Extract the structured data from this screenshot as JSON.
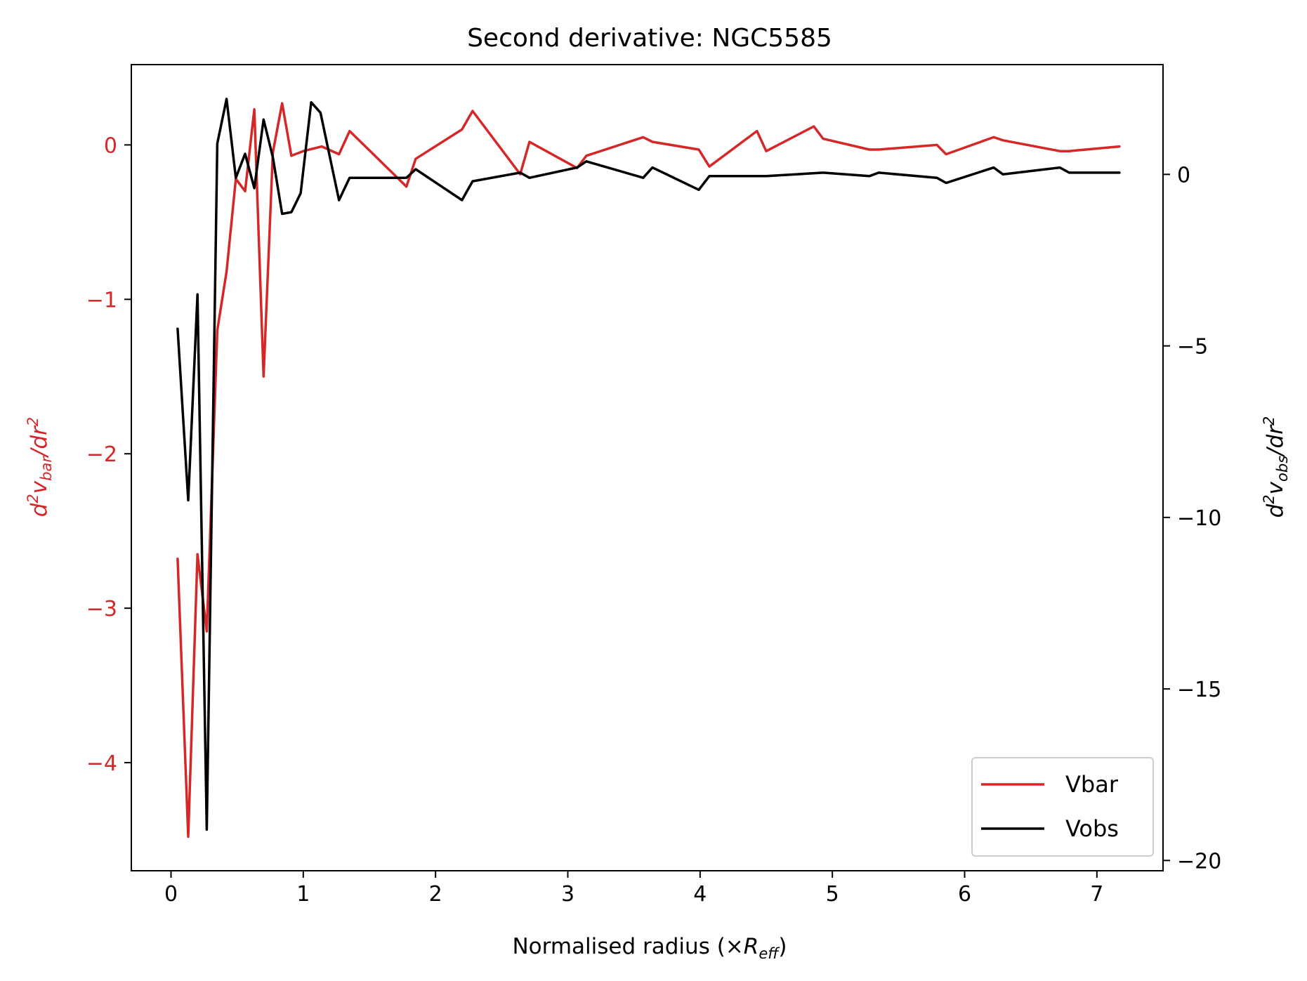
{
  "chart_data": {
    "type": "line",
    "title": "Second derivative: NGC5585",
    "xlabel": {
      "main": "Normalised radius (×",
      "var": "R",
      "sub": "eff",
      "close": ")"
    },
    "ylabel_left": {
      "d": "d",
      "exp": "2",
      "v": "v",
      "sub": "bar",
      "rest": "/dr",
      "exp2": "2"
    },
    "ylabel_right": {
      "d": "d",
      "exp": "2",
      "v": "v",
      "sub": "obs",
      "rest": "/dr",
      "exp2": "2"
    },
    "xlim": [
      -0.3,
      7.5
    ],
    "ylim_left": [
      -4.7,
      0.52
    ],
    "ylim_right": [
      -20.3,
      3.2
    ],
    "xticks": [
      0,
      1,
      2,
      3,
      4,
      5,
      6,
      7
    ],
    "yticks_left": [
      0,
      -1,
      -2,
      -3,
      -4
    ],
    "yticks_left_labels": [
      "0",
      "−1",
      "−2",
      "−3",
      "−4"
    ],
    "yticks_right": [
      0,
      -5,
      -10,
      -15,
      -20
    ],
    "yticks_right_labels": [
      "0",
      "−5",
      "−10",
      "−15",
      "−20"
    ],
    "legend_position": "lower-right",
    "colors": {
      "vbar": "#d62728",
      "vobs": "#000000",
      "left_axis": "#d62728"
    },
    "series": [
      {
        "name": "Vbar",
        "axis": "left",
        "color": "#d62728",
        "x": [
          0.05,
          0.13,
          0.2,
          0.27,
          0.35,
          0.42,
          0.49,
          0.56,
          0.63,
          0.7,
          0.77,
          0.84,
          0.91,
          1.0,
          1.14,
          1.27,
          1.35,
          1.78,
          1.85,
          2.2,
          2.28,
          2.64,
          2.71,
          3.07,
          3.14,
          3.57,
          3.64,
          3.99,
          4.07,
          4.43,
          4.5,
          4.86,
          4.93,
          5.28,
          5.35,
          5.79,
          5.86,
          6.22,
          6.29,
          6.72,
          6.79,
          7.17
        ],
        "y": [
          -2.68,
          -4.48,
          -2.65,
          -3.15,
          -1.2,
          -0.82,
          -0.22,
          -0.3,
          0.23,
          -1.5,
          -0.05,
          0.27,
          -0.07,
          -0.04,
          -0.01,
          -0.06,
          0.09,
          -0.27,
          -0.09,
          0.1,
          0.22,
          -0.19,
          0.02,
          -0.15,
          -0.07,
          0.05,
          0.02,
          -0.03,
          -0.14,
          0.09,
          -0.04,
          0.12,
          0.04,
          -0.03,
          -0.03,
          0.0,
          -0.06,
          0.05,
          0.03,
          -0.04,
          -0.04,
          -0.01
        ]
      },
      {
        "name": "Vobs",
        "axis": "right",
        "color": "#000000",
        "x": [
          0.05,
          0.13,
          0.2,
          0.27,
          0.35,
          0.42,
          0.49,
          0.56,
          0.63,
          0.7,
          0.77,
          0.84,
          0.91,
          0.98,
          1.06,
          1.13,
          1.27,
          1.35,
          1.78,
          1.85,
          2.2,
          2.28,
          2.64,
          2.71,
          3.07,
          3.14,
          3.57,
          3.64,
          3.99,
          4.07,
          4.43,
          4.5,
          4.93,
          5.28,
          5.35,
          5.79,
          5.86,
          6.22,
          6.29,
          6.72,
          6.79,
          7.17
        ],
        "y": [
          -4.5,
          -9.5,
          -3.5,
          -19.1,
          0.9,
          2.2,
          -0.1,
          0.6,
          -0.4,
          1.6,
          0.5,
          -1.15,
          -1.1,
          -0.55,
          2.1,
          1.8,
          -0.75,
          -0.1,
          -0.1,
          0.15,
          -0.75,
          -0.2,
          0.05,
          -0.1,
          0.2,
          0.38,
          -0.1,
          0.2,
          -0.45,
          -0.05,
          -0.05,
          -0.05,
          0.05,
          -0.05,
          0.05,
          -0.1,
          -0.25,
          0.2,
          0.0,
          0.2,
          0.05,
          0.05
        ]
      }
    ]
  }
}
